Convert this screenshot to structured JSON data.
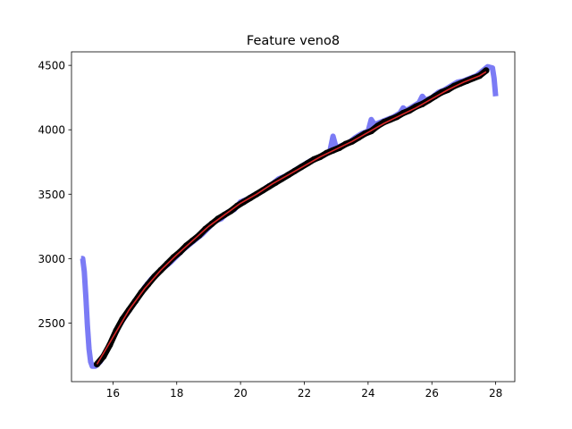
{
  "chart_data": {
    "type": "line",
    "title": "Feature veno8",
    "xlabel": "",
    "ylabel": "",
    "xlim": [
      14.7,
      28.6
    ],
    "ylim": [
      2045,
      4605
    ],
    "x_ticks": [
      16,
      18,
      20,
      22,
      24,
      26,
      28
    ],
    "y_ticks": [
      2500,
      3000,
      3500,
      4000,
      4500
    ],
    "grid": false,
    "legend": "none",
    "series": [
      {
        "color": "#7b7bf5",
        "style": "thick-line",
        "points": [
          [
            15.0,
            3000
          ],
          [
            15.05,
            3000
          ],
          [
            15.1,
            2900
          ],
          [
            15.15,
            2700
          ],
          [
            15.2,
            2480
          ],
          [
            15.25,
            2300
          ],
          [
            15.3,
            2200
          ],
          [
            15.35,
            2165
          ],
          [
            15.45,
            2165
          ],
          [
            15.6,
            2200
          ],
          [
            15.8,
            2280
          ],
          [
            16.0,
            2380
          ],
          [
            16.2,
            2480
          ],
          [
            16.4,
            2560
          ],
          [
            16.6,
            2630
          ],
          [
            16.8,
            2700
          ],
          [
            17.0,
            2780
          ],
          [
            17.2,
            2840
          ],
          [
            17.4,
            2890
          ],
          [
            17.6,
            2930
          ],
          [
            17.8,
            2970
          ],
          [
            18.0,
            3020
          ],
          [
            18.2,
            3070
          ],
          [
            18.4,
            3110
          ],
          [
            18.6,
            3150
          ],
          [
            18.8,
            3190
          ],
          [
            19.0,
            3240
          ],
          [
            19.2,
            3290
          ],
          [
            19.4,
            3310
          ],
          [
            19.6,
            3360
          ],
          [
            19.8,
            3380
          ],
          [
            20.0,
            3440
          ],
          [
            20.2,
            3460
          ],
          [
            20.4,
            3490
          ],
          [
            20.6,
            3510
          ],
          [
            20.8,
            3550
          ],
          [
            21.0,
            3580
          ],
          [
            21.2,
            3620
          ],
          [
            21.4,
            3640
          ],
          [
            21.6,
            3670
          ],
          [
            21.8,
            3700
          ],
          [
            22.0,
            3730
          ],
          [
            22.2,
            3760
          ],
          [
            22.4,
            3780
          ],
          [
            22.6,
            3800
          ],
          [
            22.8,
            3830
          ],
          [
            22.9,
            3950
          ],
          [
            23.0,
            3860
          ],
          [
            23.2,
            3880
          ],
          [
            23.4,
            3900
          ],
          [
            23.6,
            3940
          ],
          [
            23.8,
            3970
          ],
          [
            24.0,
            3990
          ],
          [
            24.1,
            4080
          ],
          [
            24.2,
            4040
          ],
          [
            24.4,
            4060
          ],
          [
            24.6,
            4080
          ],
          [
            24.8,
            4100
          ],
          [
            25.0,
            4130
          ],
          [
            25.1,
            4170
          ],
          [
            25.2,
            4150
          ],
          [
            25.4,
            4180
          ],
          [
            25.6,
            4210
          ],
          [
            25.7,
            4260
          ],
          [
            25.8,
            4230
          ],
          [
            26.0,
            4250
          ],
          [
            26.2,
            4290
          ],
          [
            26.4,
            4310
          ],
          [
            26.6,
            4340
          ],
          [
            26.8,
            4370
          ],
          [
            27.0,
            4380
          ],
          [
            27.2,
            4400
          ],
          [
            27.4,
            4420
          ],
          [
            27.6,
            4460
          ],
          [
            27.75,
            4490
          ],
          [
            27.9,
            4480
          ],
          [
            27.95,
            4400
          ],
          [
            28.0,
            4260
          ]
        ]
      },
      {
        "color": "#000000",
        "style": "dots",
        "points": [
          [
            15.5,
            2180
          ],
          [
            15.7,
            2240
          ],
          [
            15.9,
            2330
          ],
          [
            16.1,
            2440
          ],
          [
            16.3,
            2530
          ],
          [
            16.5,
            2600
          ],
          [
            16.7,
            2670
          ],
          [
            16.9,
            2740
          ],
          [
            17.1,
            2800
          ],
          [
            17.3,
            2860
          ],
          [
            17.5,
            2910
          ],
          [
            17.7,
            2960
          ],
          [
            17.9,
            3010
          ],
          [
            18.1,
            3050
          ],
          [
            18.3,
            3100
          ],
          [
            18.5,
            3140
          ],
          [
            18.7,
            3180
          ],
          [
            18.9,
            3230
          ],
          [
            19.1,
            3270
          ],
          [
            19.3,
            3310
          ],
          [
            19.5,
            3340
          ],
          [
            19.7,
            3370
          ],
          [
            19.9,
            3410
          ],
          [
            20.1,
            3440
          ],
          [
            20.3,
            3470
          ],
          [
            20.5,
            3500
          ],
          [
            20.7,
            3530
          ],
          [
            20.9,
            3560
          ],
          [
            21.1,
            3590
          ],
          [
            21.3,
            3620
          ],
          [
            21.5,
            3650
          ],
          [
            21.7,
            3680
          ],
          [
            21.9,
            3710
          ],
          [
            22.1,
            3740
          ],
          [
            22.3,
            3770
          ],
          [
            22.5,
            3790
          ],
          [
            22.7,
            3820
          ],
          [
            22.9,
            3840
          ],
          [
            23.1,
            3860
          ],
          [
            23.3,
            3890
          ],
          [
            23.5,
            3910
          ],
          [
            23.7,
            3940
          ],
          [
            23.9,
            3970
          ],
          [
            24.1,
            3990
          ],
          [
            24.3,
            4030
          ],
          [
            24.5,
            4060
          ],
          [
            24.7,
            4080
          ],
          [
            24.9,
            4100
          ],
          [
            25.1,
            4130
          ],
          [
            25.3,
            4150
          ],
          [
            25.5,
            4180
          ],
          [
            25.7,
            4200
          ],
          [
            25.9,
            4230
          ],
          [
            26.1,
            4260
          ],
          [
            26.3,
            4290
          ],
          [
            26.5,
            4310
          ],
          [
            26.7,
            4340
          ],
          [
            26.9,
            4360
          ],
          [
            27.1,
            4380
          ],
          [
            27.3,
            4400
          ],
          [
            27.5,
            4420
          ],
          [
            27.7,
            4460
          ]
        ]
      },
      {
        "color": "#d62728",
        "style": "line",
        "points": [
          [
            15.5,
            2180
          ],
          [
            16.0,
            2390
          ],
          [
            16.5,
            2600
          ],
          [
            17.0,
            2770
          ],
          [
            17.5,
            2910
          ],
          [
            18.0,
            3030
          ],
          [
            18.5,
            3140
          ],
          [
            19.0,
            3250
          ],
          [
            19.5,
            3340
          ],
          [
            20.0,
            3430
          ],
          [
            20.5,
            3500
          ],
          [
            21.0,
            3580
          ],
          [
            21.5,
            3650
          ],
          [
            22.0,
            3720
          ],
          [
            22.5,
            3790
          ],
          [
            23.0,
            3850
          ],
          [
            23.5,
            3910
          ],
          [
            24.0,
            3980
          ],
          [
            24.5,
            4050
          ],
          [
            25.0,
            4110
          ],
          [
            25.5,
            4170
          ],
          [
            26.0,
            4240
          ],
          [
            26.5,
            4310
          ],
          [
            27.0,
            4370
          ],
          [
            27.5,
            4420
          ],
          [
            27.7,
            4450
          ]
        ]
      }
    ]
  }
}
